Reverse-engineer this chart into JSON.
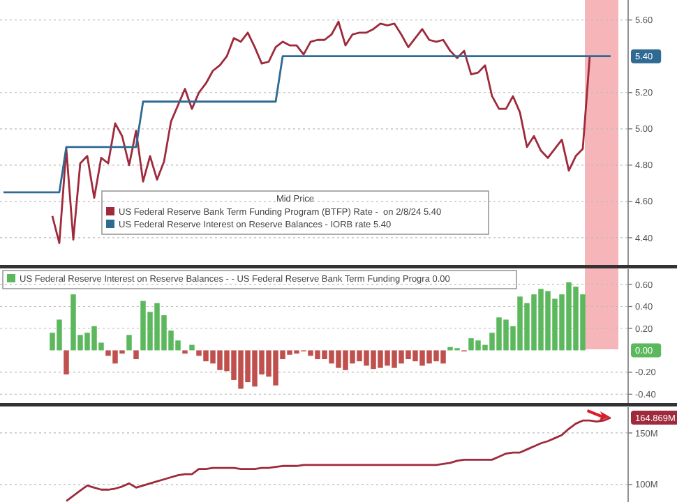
{
  "chart_data": [
    {
      "type": "line",
      "legend_title": "Mid Price",
      "legend": "bottom left",
      "grid": "y",
      "tick_labels": "y",
      "ylim": [
        4.25,
        5.71
      ],
      "categories": [
        null,
        null,
        null,
        null,
        null,
        null,
        null,
        null,
        null,
        null,
        null,
        null,
        null,
        null,
        null,
        null,
        null,
        null,
        null,
        null,
        null,
        null,
        null,
        null,
        null,
        null,
        null,
        null,
        null,
        null,
        null,
        null,
        null,
        null,
        null,
        null,
        null,
        null,
        null,
        null,
        null,
        null,
        null,
        null,
        null,
        null,
        null,
        null,
        null,
        null,
        null,
        null,
        null,
        null,
        null,
        null,
        null,
        null,
        null,
        null,
        null,
        null,
        null,
        null,
        null,
        null,
        null,
        null,
        null,
        null,
        null,
        null,
        null,
        null,
        null,
        null,
        null,
        null,
        null,
        null,
        null,
        null,
        null,
        null,
        null,
        null,
        null,
        null,
        null,
        null
      ],
      "yticks": [
        {
          "value": 5.6,
          "label": "5.60"
        },
        {
          "value": 5.2,
          "label": "5.20"
        },
        {
          "value": 5.0,
          "label": "5.00"
        },
        {
          "value": 4.8,
          "label": "4.80"
        },
        {
          "value": 4.6,
          "label": "4.60"
        },
        {
          "value": 4.4,
          "label": "4.40"
        }
      ],
      "annotations": [
        "5.40"
      ],
      "series": [
        {
          "name": "US Federal Reserve Bank Term Funding Program (BTFP) Rate -  on 2/8/24 5.40",
          "color": "#9e2a3c",
          "values": [
            null,
            null,
            null,
            null,
            null,
            null,
            null,
            4.52,
            4.37,
            4.89,
            4.39,
            4.81,
            4.85,
            4.62,
            4.84,
            4.81,
            5.03,
            4.96,
            4.8,
            4.99,
            4.71,
            4.85,
            4.72,
            4.82,
            5.04,
            5.13,
            5.22,
            5.11,
            5.2,
            5.25,
            5.32,
            5.35,
            5.4,
            5.5,
            5.48,
            5.53,
            5.45,
            5.36,
            5.37,
            5.45,
            5.48,
            5.46,
            5.46,
            5.41,
            5.48,
            5.49,
            5.49,
            5.52,
            5.59,
            5.46,
            5.52,
            5.53,
            5.53,
            5.55,
            5.58,
            5.57,
            5.58,
            5.52,
            5.45,
            5.5,
            5.55,
            5.49,
            5.48,
            5.49,
            5.43,
            5.39,
            5.43,
            5.3,
            5.31,
            5.35,
            5.18,
            5.11,
            5.11,
            5.18,
            5.09,
            4.9,
            4.96,
            4.88,
            4.84,
            4.89,
            4.94,
            4.77,
            4.85,
            4.89,
            5.4,
            null,
            null,
            null,
            null,
            null
          ]
        },
        {
          "name": "US Federal Reserve Interest on Reserve Balances - IORB rate 5.40",
          "color": "#2e6a92",
          "values": [
            4.65,
            4.65,
            4.65,
            4.65,
            4.65,
            4.65,
            4.65,
            4.65,
            4.65,
            4.9,
            4.9,
            4.9,
            4.9,
            4.9,
            4.9,
            4.9,
            4.9,
            4.9,
            4.9,
            4.9,
            5.15,
            5.15,
            5.15,
            5.15,
            5.15,
            5.15,
            5.15,
            5.15,
            5.15,
            5.15,
            5.15,
            5.15,
            5.15,
            5.15,
            5.15,
            5.15,
            5.15,
            5.15,
            5.15,
            5.15,
            5.4,
            5.4,
            5.4,
            5.4,
            5.4,
            5.4,
            5.4,
            5.4,
            5.4,
            5.4,
            5.4,
            5.4,
            5.4,
            5.4,
            5.4,
            5.4,
            5.4,
            5.4,
            5.4,
            5.4,
            5.4,
            5.4,
            5.4,
            5.4,
            5.4,
            5.4,
            5.4,
            5.4,
            5.4,
            5.4,
            5.4,
            5.4,
            5.4,
            5.4,
            5.4,
            5.4,
            5.4,
            5.4,
            5.4,
            5.4,
            5.4,
            5.4,
            5.4,
            5.4,
            5.4,
            5.4,
            5.4,
            5.4,
            null,
            null
          ]
        }
      ]
    },
    {
      "type": "bar",
      "legend": "top left",
      "grid": "y",
      "tick_labels": "y",
      "ylim": [
        -0.48,
        0.74
      ],
      "categories": [
        null,
        null,
        null,
        null,
        null,
        null,
        null,
        null,
        null,
        null,
        null,
        null,
        null,
        null,
        null,
        null,
        null,
        null,
        null,
        null,
        null,
        null,
        null,
        null,
        null,
        null,
        null,
        null,
        null,
        null,
        null,
        null,
        null,
        null,
        null,
        null,
        null,
        null,
        null,
        null,
        null,
        null,
        null,
        null,
        null,
        null,
        null,
        null,
        null,
        null,
        null,
        null,
        null,
        null,
        null,
        null,
        null,
        null,
        null,
        null,
        null,
        null,
        null,
        null,
        null,
        null,
        null,
        null,
        null,
        null,
        null,
        null,
        null,
        null,
        null,
        null,
        null,
        null,
        null,
        null,
        null,
        null,
        null,
        null,
        null,
        null,
        null,
        null,
        null,
        null
      ],
      "yticks": [
        {
          "value": 0.6,
          "label": "0.60"
        },
        {
          "value": 0.4,
          "label": "0.40"
        },
        {
          "value": 0.2,
          "label": "0.20"
        },
        {
          "value": -0.2,
          "label": "-0.20"
        },
        {
          "value": -0.4,
          "label": "-0.40"
        }
      ],
      "annotations": [
        "0.00"
      ],
      "series": [
        {
          "name": "US Federal Reserve Interest on Reserve Balances - - US Federal Reserve Bank Term Funding Progra 0.00",
          "color": "#5cb85c",
          "values": [
            null,
            null,
            null,
            null,
            null,
            null,
            null,
            0.16,
            0.28,
            -0.22,
            0.51,
            0.14,
            0.16,
            0.22,
            0.07,
            -0.05,
            -0.12,
            -0.03,
            0.14,
            -0.08,
            0.45,
            0.35,
            0.43,
            0.32,
            0.18,
            0.09,
            -0.03,
            0.05,
            -0.05,
            -0.1,
            -0.12,
            -0.18,
            -0.19,
            -0.27,
            -0.35,
            -0.29,
            -0.33,
            -0.22,
            -0.24,
            -0.32,
            -0.08,
            -0.04,
            -0.03,
            -0.01,
            -0.05,
            -0.08,
            -0.08,
            -0.12,
            -0.16,
            -0.18,
            -0.12,
            -0.1,
            -0.14,
            -0.17,
            -0.16,
            -0.14,
            -0.16,
            -0.12,
            -0.08,
            -0.1,
            -0.14,
            -0.12,
            -0.1,
            -0.12,
            0.03,
            0.02,
            -0.01,
            0.11,
            0.09,
            0.05,
            0.16,
            0.3,
            0.28,
            0.22,
            0.49,
            0.43,
            0.51,
            0.56,
            0.54,
            0.47,
            0.51,
            0.62,
            0.58,
            0.51,
            0,
            0,
            0,
            0,
            0,
            null
          ],
          "colors": [
            null,
            null,
            null,
            null,
            null,
            null,
            null,
            "#5cb85c",
            "#5cb85c",
            "#c0504d",
            "#5cb85c",
            "#5cb85c",
            "#5cb85c",
            "#5cb85c",
            "#5cb85c",
            "#c0504d",
            "#c0504d",
            "#c0504d",
            "#5cb85c",
            "#c0504d",
            "#5cb85c",
            "#5cb85c",
            "#5cb85c",
            "#5cb85c",
            "#5cb85c",
            "#5cb85c",
            "#c0504d",
            "#5cb85c",
            "#c0504d",
            "#c0504d",
            "#c0504d",
            "#c0504d",
            "#c0504d",
            "#c0504d",
            "#c0504d",
            "#c0504d",
            "#c0504d",
            "#c0504d",
            "#c0504d",
            "#c0504d",
            "#c0504d",
            "#c0504d",
            "#c0504d",
            "#c0504d",
            "#c0504d",
            "#c0504d",
            "#c0504d",
            "#c0504d",
            "#c0504d",
            "#c0504d",
            "#c0504d",
            "#c0504d",
            "#c0504d",
            "#c0504d",
            "#c0504d",
            "#c0504d",
            "#c0504d",
            "#c0504d",
            "#c0504d",
            "#c0504d",
            "#c0504d",
            "#c0504d",
            "#c0504d",
            "#c0504d",
            "#5cb85c",
            "#5cb85c",
            "#c0504d",
            "#5cb85c",
            "#5cb85c",
            "#5cb85c",
            "#5cb85c",
            "#5cb85c",
            "#5cb85c",
            "#5cb85c",
            "#5cb85c",
            "#5cb85c",
            "#5cb85c",
            "#5cb85c",
            "#5cb85c",
            "#5cb85c",
            "#5cb85c",
            "#5cb85c",
            "#5cb85c",
            "#5cb85c",
            "#5cb85c",
            "#5cb85c",
            "#5cb85c",
            "#5cb85c",
            "#5cb85c",
            null
          ]
        }
      ]
    },
    {
      "type": "line",
      "grid": "y",
      "tick_labels": "y",
      "ylim": [
        83,
        175
      ],
      "categories": [
        null,
        null,
        null,
        null,
        null,
        null,
        null,
        null,
        null,
        null,
        null,
        null,
        null,
        null,
        null,
        null,
        null,
        null,
        null,
        null,
        null,
        null,
        null,
        null,
        null,
        null,
        null,
        null,
        null,
        null,
        null,
        null,
        null,
        null,
        null,
        null,
        null,
        null,
        null,
        null,
        null,
        null,
        null,
        null,
        null,
        null,
        null,
        null,
        null,
        null,
        null,
        null,
        null,
        null,
        null,
        null,
        null,
        null,
        null,
        null,
        null,
        null,
        null,
        null,
        null,
        null,
        null,
        null,
        null,
        null,
        null,
        null,
        null,
        null,
        null,
        null,
        null,
        null,
        null,
        null,
        null,
        null,
        null,
        null,
        null,
        null,
        null,
        null,
        null,
        null
      ],
      "yticks": [
        {
          "value": 150,
          "label": "150M"
        },
        {
          "value": 100,
          "label": "100M"
        }
      ],
      "annotations": [
        "164.869M"
      ],
      "series": [
        {
          "color": "#9e2a3c",
          "values": [
            null,
            null,
            null,
            null,
            null,
            null,
            null,
            null,
            null,
            84,
            89,
            94,
            99,
            97,
            95,
            95,
            96,
            98,
            101,
            97,
            99,
            101,
            103,
            105,
            107,
            109,
            110,
            110,
            115,
            115,
            116,
            116,
            116,
            116,
            115,
            115,
            115,
            116,
            116,
            117,
            118,
            118,
            118,
            119,
            119,
            119,
            119,
            119,
            119,
            119,
            119,
            119,
            119,
            119,
            119,
            119,
            119,
            119,
            119,
            119,
            119,
            119,
            119,
            120,
            121,
            123,
            124,
            124,
            124,
            124,
            124,
            127,
            130,
            131,
            131,
            134,
            137,
            140,
            142,
            145,
            148,
            154,
            159,
            162,
            162,
            161,
            162,
            164.869,
            null,
            null
          ]
        }
      ]
    }
  ]
}
